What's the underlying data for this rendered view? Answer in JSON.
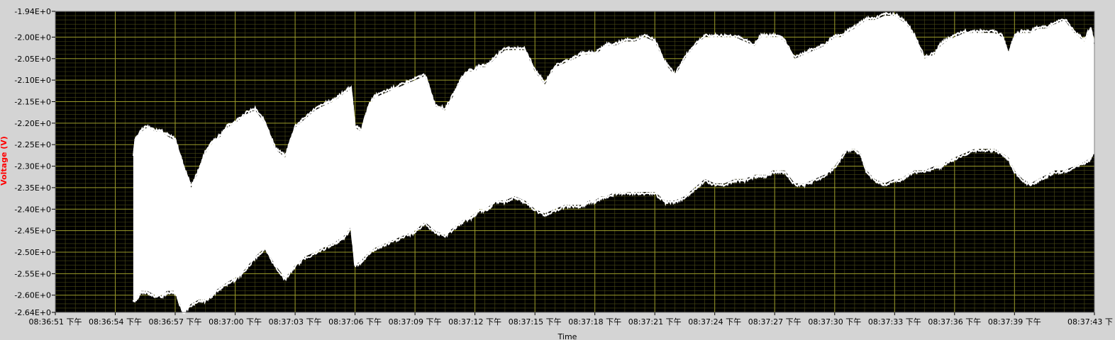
{
  "chart_data": {
    "type": "area",
    "xlabel": "Time",
    "ylabel": "Voltage (V)",
    "ylim": [
      -2.64,
      -1.94
    ],
    "y_ticks": [
      -1.94,
      -2.0,
      -2.05,
      -2.1,
      -2.15,
      -2.2,
      -2.25,
      -2.3,
      -2.35,
      -2.4,
      -2.45,
      -2.5,
      -2.55,
      -2.6,
      -2.64
    ],
    "y_tick_labels": [
      "-1.94E+0",
      "-2.00E+0",
      "-2.05E+0",
      "-2.10E+0",
      "-2.15E+0",
      "-2.20E+0",
      "-2.25E+0",
      "-2.30E+0",
      "-2.35E+0",
      "-2.40E+0",
      "-2.45E+0",
      "-2.50E+0",
      "-2.55E+0",
      "-2.60E+0",
      "-2.64E+0"
    ],
    "x_range_seconds": [
      0,
      52
    ],
    "x_ticks_seconds": [
      0,
      3,
      6,
      9,
      12,
      15,
      18,
      21,
      24,
      27,
      30,
      33,
      36,
      39,
      42,
      45,
      48,
      52
    ],
    "x_tick_labels": [
      "08:36:51 下午",
      "08:36:54 下午",
      "08:36:57 下午",
      "08:37:00 下午",
      "08:37:03 下午",
      "08:37:06 下午",
      "08:37:09 下午",
      "08:37:12 下午",
      "08:37:15 下午",
      "08:37:18 下午",
      "08:37:21 下午",
      "08:37:24 下午",
      "08:37:27 下午",
      "08:37:30 下午",
      "08:37:33 下午",
      "08:37:36 下午",
      "08:37:39 下午",
      "08:37:43 下"
    ],
    "grid": true,
    "colors": {
      "plot_background": "#000000",
      "major_grid": "#9a9a2a",
      "minor_grid": "#4a4a15",
      "trace": "#ffffff",
      "ylabel": "#ff0000",
      "panel": "#d4d4d4"
    },
    "series": [
      {
        "x": [
          3.9,
          4.0,
          4.3,
          4.6,
          5.0,
          5.3,
          5.6,
          6.0,
          6.4,
          6.8,
          7.2,
          7.5,
          7.8,
          8.0,
          8.3,
          8.6,
          9.0,
          9.5,
          10.0,
          10.5,
          11.0,
          11.5,
          12.0,
          12.5,
          13.0,
          13.4,
          13.9,
          14.2,
          14.5,
          14.8,
          15.0,
          15.3,
          15.7,
          16.0,
          16.5,
          17.0,
          17.5,
          18.0,
          18.5,
          19.0,
          19.5,
          20.0,
          20.3,
          20.5,
          20.7,
          21.0,
          21.2,
          21.5,
          21.8,
          22.0,
          22.5,
          23.0,
          23.5,
          24.0,
          24.5,
          25.0,
          25.5,
          26.0,
          26.4,
          26.7,
          27.0,
          27.3,
          27.6,
          28.0,
          28.5,
          29.0,
          29.5,
          30.0,
          30.5,
          31.0,
          31.5,
          32.0,
          32.5,
          33.0,
          33.5,
          34.0,
          34.5,
          35.0,
          35.3,
          35.6,
          35.9,
          36.2,
          36.5,
          37.0,
          37.5,
          38.0,
          38.5,
          39.0,
          39.3,
          39.6,
          40.0,
          40.3,
          40.6,
          41.0,
          41.5,
          42.0,
          42.3,
          42.6,
          43.0,
          43.5,
          44.0,
          44.3,
          44.6,
          45.0,
          45.5,
          46.0,
          46.5,
          47.0,
          47.4,
          47.7,
          48.0,
          48.4,
          48.8,
          49.2,
          49.6,
          50.0,
          50.5,
          51.0,
          51.5,
          51.8,
          52.0
        ],
        "y_max": [
          -2.28,
          -2.24,
          -2.22,
          -2.21,
          -2.22,
          -2.22,
          -2.23,
          -2.24,
          -2.3,
          -2.35,
          -2.31,
          -2.27,
          -2.25,
          -2.24,
          -2.23,
          -2.21,
          -2.2,
          -2.18,
          -2.17,
          -2.2,
          -2.26,
          -2.28,
          -2.21,
          -2.19,
          -2.17,
          -2.16,
          -2.15,
          -2.14,
          -2.13,
          -2.12,
          -2.21,
          -2.22,
          -2.16,
          -2.14,
          -2.13,
          -2.12,
          -2.11,
          -2.1,
          -2.09,
          -2.16,
          -2.17,
          -2.13,
          -2.1,
          -2.09,
          -2.08,
          -2.08,
          -2.07,
          -2.07,
          -2.06,
          -2.05,
          -2.03,
          -2.03,
          -2.03,
          -2.08,
          -2.11,
          -2.07,
          -2.06,
          -2.05,
          -2.04,
          -2.04,
          -2.04,
          -2.03,
          -2.02,
          -2.02,
          -2.01,
          -2.01,
          -2.0,
          -2.01,
          -2.06,
          -2.09,
          -2.05,
          -2.02,
          -2.0,
          -2.0,
          -2.0,
          -2.0,
          -2.01,
          -2.02,
          -2.0,
          -2.0,
          -2.0,
          -2.0,
          -2.01,
          -2.05,
          -2.04,
          -2.03,
          -2.02,
          -2.0,
          -2.0,
          -1.99,
          -1.98,
          -1.97,
          -1.96,
          -1.96,
          -1.95,
          -1.95,
          -1.96,
          -1.97,
          -2.0,
          -2.05,
          -2.04,
          -2.02,
          -2.01,
          -2.0,
          -1.99,
          -1.99,
          -1.99,
          -1.99,
          -2.0,
          -2.04,
          -2.0,
          -1.99,
          -1.99,
          -1.98,
          -1.98,
          -1.97,
          -1.96,
          -1.99,
          -2.01,
          -1.98,
          -2.02
        ],
        "y_min": [
          -2.61,
          -2.61,
          -2.59,
          -2.59,
          -2.6,
          -2.6,
          -2.59,
          -2.59,
          -2.64,
          -2.62,
          -2.61,
          -2.61,
          -2.6,
          -2.59,
          -2.58,
          -2.57,
          -2.56,
          -2.54,
          -2.51,
          -2.49,
          -2.53,
          -2.56,
          -2.53,
          -2.51,
          -2.5,
          -2.49,
          -2.48,
          -2.47,
          -2.46,
          -2.44,
          -2.53,
          -2.52,
          -2.5,
          -2.49,
          -2.48,
          -2.47,
          -2.46,
          -2.45,
          -2.43,
          -2.45,
          -2.46,
          -2.44,
          -2.43,
          -2.42,
          -2.42,
          -2.41,
          -2.4,
          -2.4,
          -2.39,
          -2.38,
          -2.38,
          -2.37,
          -2.38,
          -2.4,
          -2.41,
          -2.4,
          -2.39,
          -2.39,
          -2.39,
          -2.38,
          -2.38,
          -2.37,
          -2.37,
          -2.36,
          -2.36,
          -2.36,
          -2.36,
          -2.36,
          -2.38,
          -2.38,
          -2.37,
          -2.35,
          -2.33,
          -2.34,
          -2.34,
          -2.33,
          -2.33,
          -2.32,
          -2.32,
          -2.32,
          -2.31,
          -2.31,
          -2.31,
          -2.34,
          -2.34,
          -2.33,
          -2.32,
          -2.3,
          -2.28,
          -2.26,
          -2.26,
          -2.27,
          -2.31,
          -2.33,
          -2.34,
          -2.33,
          -2.33,
          -2.32,
          -2.31,
          -2.31,
          -2.3,
          -2.3,
          -2.29,
          -2.28,
          -2.27,
          -2.26,
          -2.26,
          -2.26,
          -2.27,
          -2.28,
          -2.31,
          -2.33,
          -2.34,
          -2.33,
          -2.32,
          -2.31,
          -2.31,
          -2.3,
          -2.29,
          -2.28,
          -2.26
        ]
      }
    ]
  }
}
